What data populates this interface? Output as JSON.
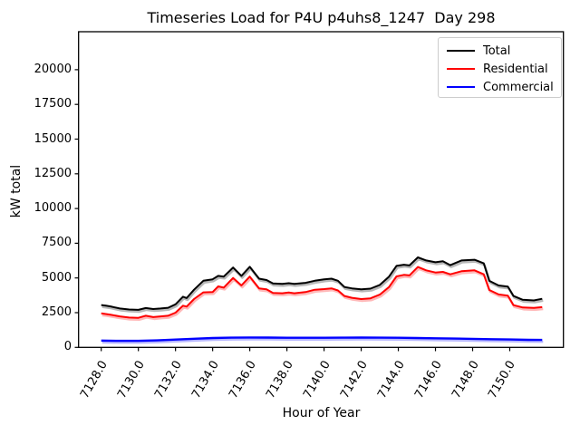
{
  "chart_data": {
    "type": "line",
    "title": "Timeseries Load for P4U p4uhs8_1247  Day 298",
    "xlabel": "Hour of Year",
    "ylabel": "kW total",
    "xlim": [
      7126.78,
      7152.89
    ],
    "ylim": [
      0,
      22735
    ],
    "grid": false,
    "legend_position": "upper right",
    "x_ticks": [
      7128,
      7130,
      7132,
      7134,
      7136,
      7138,
      7140,
      7142,
      7144,
      7146,
      7148,
      7150
    ],
    "x_tick_labels": [
      "7128.0",
      "7130.0",
      "7132.0",
      "7134.0",
      "7136.0",
      "7138.0",
      "7140.0",
      "7142.0",
      "7144.0",
      "7146.0",
      "7148.0",
      "7150.0"
    ],
    "y_ticks": [
      0,
      2500,
      5000,
      7500,
      10000,
      12500,
      15000,
      17500,
      20000
    ],
    "y_tick_labels": [
      "0",
      "2500",
      "5000",
      "7500",
      "10000",
      "12500",
      "15000",
      "17500",
      "20000"
    ],
    "series": [
      {
        "name": "Total",
        "color": "#000000",
        "x": [
          7128,
          7128.25,
          7128.5,
          7129,
          7129.5,
          7130,
          7130.4,
          7130.8,
          7131.2,
          7131.6,
          7132,
          7132.4,
          7132.6,
          7133,
          7133.5,
          7134,
          7134.3,
          7134.6,
          7135.1,
          7135.55,
          7136,
          7136.5,
          7136.9,
          7137.25,
          7137.75,
          7138.1,
          7138.4,
          7139,
          7139.5,
          7140,
          7140.4,
          7140.75,
          7141.1,
          7141.5,
          7142,
          7142.5,
          7143,
          7143.5,
          7143.9,
          7144.3,
          7144.6,
          7145.05,
          7145.5,
          7146,
          7146.4,
          7146.8,
          7147.4,
          7148.1,
          7148.6,
          7148.9,
          7149.4,
          7149.9,
          7150.2,
          7150.7,
          7151.3,
          7151.75
        ],
        "y": [
          3050,
          3000,
          2950,
          2800,
          2730,
          2700,
          2830,
          2760,
          2800,
          2850,
          3100,
          3650,
          3550,
          4150,
          4800,
          4900,
          5150,
          5100,
          5750,
          5150,
          5800,
          4950,
          4850,
          4600,
          4570,
          4620,
          4570,
          4650,
          4800,
          4900,
          4950,
          4800,
          4350,
          4250,
          4180,
          4230,
          4500,
          5100,
          5870,
          5950,
          5900,
          6480,
          6260,
          6130,
          6200,
          5920,
          6260,
          6310,
          6050,
          4790,
          4460,
          4380,
          3700,
          3430,
          3380,
          3500
        ]
      },
      {
        "name": "Residential",
        "color": "#ff0000",
        "x": [
          7128,
          7128.25,
          7128.5,
          7129,
          7129.5,
          7130,
          7130.4,
          7130.8,
          7131.2,
          7131.6,
          7132,
          7132.4,
          7132.6,
          7133,
          7133.5,
          7134,
          7134.3,
          7134.6,
          7135.1,
          7135.55,
          7136,
          7136.5,
          7136.9,
          7137.25,
          7137.75,
          7138.1,
          7138.4,
          7139,
          7139.5,
          7140,
          7140.4,
          7140.75,
          7141.1,
          7141.5,
          7142,
          7142.5,
          7143,
          7143.5,
          7143.9,
          7144.3,
          7144.6,
          7145.05,
          7145.5,
          7146,
          7146.4,
          7146.8,
          7147.4,
          7148.1,
          7148.6,
          7148.9,
          7149.4,
          7149.9,
          7150.2,
          7150.7,
          7151.3,
          7151.75
        ],
        "y": [
          2450,
          2400,
          2350,
          2230,
          2150,
          2130,
          2280,
          2180,
          2230,
          2280,
          2500,
          3000,
          2940,
          3480,
          3960,
          3980,
          4390,
          4300,
          5000,
          4460,
          5100,
          4240,
          4180,
          3920,
          3900,
          3950,
          3900,
          3980,
          4150,
          4200,
          4250,
          4100,
          3700,
          3570,
          3480,
          3530,
          3800,
          4350,
          5110,
          5220,
          5180,
          5790,
          5550,
          5390,
          5440,
          5260,
          5480,
          5550,
          5260,
          4130,
          3810,
          3720,
          3040,
          2870,
          2840,
          2900
        ]
      },
      {
        "name": "Commercial",
        "color": "#0000ff",
        "x": [
          7128,
          7129,
          7130,
          7131,
          7132,
          7133,
          7134,
          7135,
          7136,
          7137,
          7138,
          7139,
          7140,
          7141,
          7142,
          7143,
          7144,
          7145,
          7146,
          7147,
          7148,
          7149,
          7150,
          7151,
          7151.75
        ],
        "y": [
          490,
          470,
          470,
          500,
          560,
          620,
          670,
          700,
          710,
          705,
          695,
          690,
          695,
          700,
          705,
          700,
          690,
          670,
          650,
          635,
          615,
          590,
          565,
          545,
          535
        ]
      }
    ]
  }
}
